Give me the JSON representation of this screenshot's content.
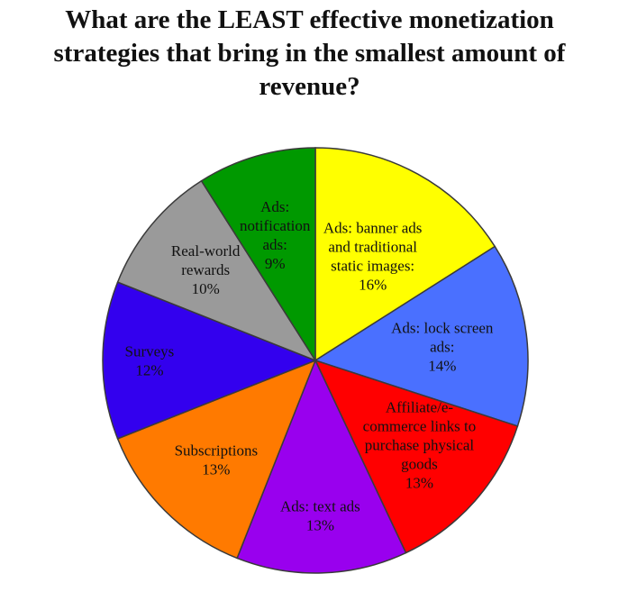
{
  "chart_data": {
    "type": "pie",
    "title_lines": [
      "What are the LEAST effective monetization",
      "strategies that bring in the smallest amount of",
      "revenue?"
    ],
    "slices": [
      {
        "label": "Ads: banner ads and traditional static images",
        "label_lines": [
          "Ads: banner ads",
          "and traditional",
          "static images:",
          "16%"
        ],
        "value": 16,
        "color": "#FFFF00"
      },
      {
        "label": "Ads: lock screen ads",
        "label_lines": [
          "Ads: lock screen",
          "ads:",
          "14%"
        ],
        "value": 14,
        "color": "#4A70FF"
      },
      {
        "label": "Affiliate/e-commerce links to purchase physical goods",
        "label_lines": [
          "Affiliate/e-",
          "commerce links to",
          "purchase physical",
          "goods",
          "13%"
        ],
        "value": 13,
        "color": "#FF0000"
      },
      {
        "label": "Ads: text ads",
        "label_lines": [
          "Ads: text ads",
          "13%"
        ],
        "value": 13,
        "color": "#9900EE"
      },
      {
        "label": "Subscriptions",
        "label_lines": [
          "Subscriptions",
          "13%"
        ],
        "value": 13,
        "color": "#FF7A00"
      },
      {
        "label": "Surveys",
        "label_lines": [
          "Surveys",
          "12%"
        ],
        "value": 12,
        "color": "#3300EE"
      },
      {
        "label": "Real-world rewards",
        "label_lines": [
          "Real-world",
          "rewards",
          "10%"
        ],
        "value": 10,
        "color": "#9A9A9A"
      },
      {
        "label": "Ads: notification ads",
        "label_lines": [
          "Ads:",
          "notification",
          "ads:",
          "9%"
        ],
        "value": 9,
        "color": "#009900"
      }
    ]
  }
}
